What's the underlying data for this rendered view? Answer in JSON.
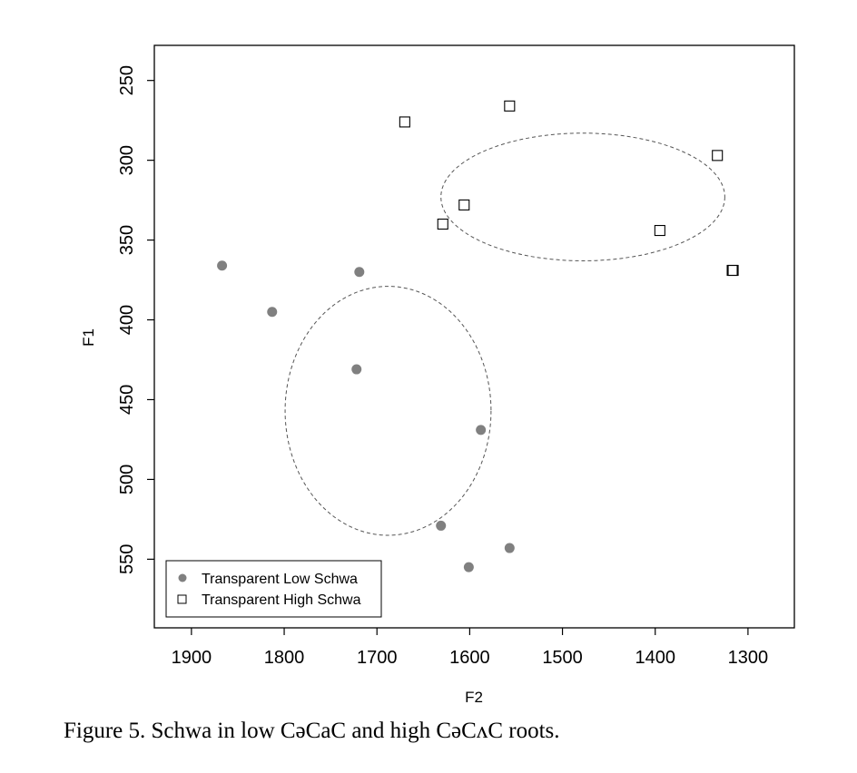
{
  "chart_data": {
    "type": "scatter",
    "xlabel": "F2",
    "ylabel": "F1",
    "x_reversed": true,
    "y_reversed": true,
    "xlim": [
      1940,
      1250
    ],
    "ylim": [
      593,
      228
    ],
    "xticks": [
      1900,
      1800,
      1700,
      1600,
      1500,
      1400,
      1300
    ],
    "yticks": [
      250,
      300,
      350,
      400,
      450,
      500,
      550
    ],
    "grid": false,
    "legend_position": "bottom-left",
    "series": [
      {
        "name": "Transparent Low Schwa",
        "marker": "filled-circle",
        "color": "#808080",
        "points": [
          {
            "x": 1867,
            "y": 366
          },
          {
            "x": 1813,
            "y": 395
          },
          {
            "x": 1719,
            "y": 370
          },
          {
            "x": 1722,
            "y": 431
          },
          {
            "x": 1588,
            "y": 469
          },
          {
            "x": 1631,
            "y": 529
          },
          {
            "x": 1557,
            "y": 543
          },
          {
            "x": 1601,
            "y": 555
          }
        ],
        "ellipse": {
          "cx": 1688,
          "cy": 457,
          "rx": 111,
          "ry": 78
        }
      },
      {
        "name": "Transparent High Schwa",
        "marker": "open-square",
        "color": "#000000",
        "points": [
          {
            "x": 1670,
            "y": 276
          },
          {
            "x": 1557,
            "y": 266
          },
          {
            "x": 1333,
            "y": 297
          },
          {
            "x": 1606,
            "y": 328
          },
          {
            "x": 1629,
            "y": 340
          },
          {
            "x": 1395,
            "y": 344
          },
          {
            "x": 1316,
            "y": 369
          },
          {
            "x": 1317,
            "y": 369
          }
        ],
        "ellipse": {
          "cx": 1478,
          "cy": 323,
          "rx": 153,
          "ry": 40
        }
      }
    ]
  },
  "caption": "Figure 5. Schwa in low CəCaC and high CəCʌC roots."
}
